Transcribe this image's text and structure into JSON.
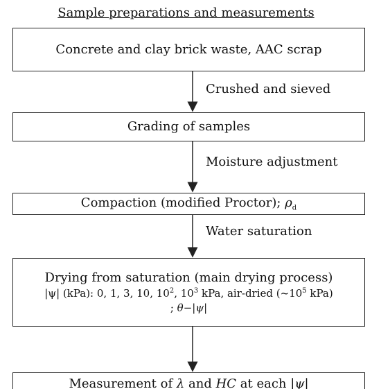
{
  "title": "Sample preparations and measurements",
  "nodes": [
    {
      "label": "Concrete and clay brick waste, AAC scrap"
    },
    {
      "label": "Grading of samples"
    },
    {
      "parts": [
        "Compaction (modified Proctor); ",
        "ρ",
        "d"
      ]
    },
    {
      "lines": [
        [
          "Drying from saturation (main drying process)"
        ],
        [
          "|ψ| (kPa): 0, 1, 3, 10, 10",
          "2",
          ", 10",
          "3",
          " kPa, air-dried (~10",
          "5",
          " kPa)"
        ],
        [
          "; ",
          "θ",
          "−|",
          "ψ",
          "|"
        ]
      ]
    },
    {
      "parts": [
        "Measurement of ",
        "λ",
        " and ",
        "HC",
        " at each |",
        "ψ",
        "|"
      ]
    }
  ],
  "edges": [
    "Crushed and sieved",
    "Moisture adjustment",
    "Water saturation"
  ]
}
